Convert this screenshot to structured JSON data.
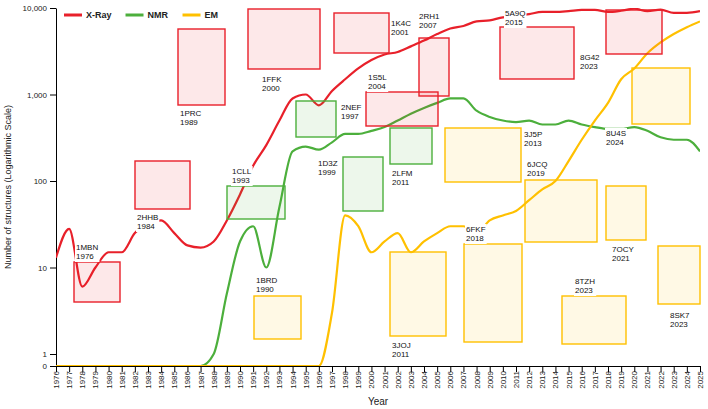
{
  "chart_data": {
    "type": "line",
    "x_label": "Year",
    "y_label": "Number of structures (Logarithmic Scale)",
    "log": "y",
    "legend": "top-left",
    "x": [
      1976,
      1977,
      1978,
      1979,
      1980,
      1981,
      1982,
      1983,
      1984,
      1985,
      1986,
      1987,
      1988,
      1989,
      1990,
      1991,
      1992,
      1993,
      1994,
      1995,
      1996,
      1997,
      1998,
      1999,
      2000,
      2001,
      2002,
      2003,
      2004,
      2005,
      2006,
      2007,
      2008,
      2009,
      2010,
      2011,
      2012,
      2013,
      2014,
      2015,
      2016,
      2017,
      2018,
      2019,
      2020,
      2021,
      2022,
      2023,
      2024,
      2025
    ],
    "xlim": [
      1976,
      2025
    ],
    "xticks": [
      1976,
      1977,
      1978,
      1979,
      1980,
      1981,
      1982,
      1983,
      1984,
      1985,
      1986,
      1987,
      1988,
      1989,
      1990,
      1991,
      1992,
      1993,
      1994,
      1995,
      1996,
      1997,
      1998,
      1999,
      2000,
      2001,
      2002,
      2003,
      2004,
      2005,
      2006,
      2007,
      2008,
      2009,
      2010,
      2011,
      2012,
      2013,
      2014,
      2015,
      2016,
      2017,
      2018,
      2019,
      2020,
      2021,
      2022,
      2023,
      2024,
      2025
    ],
    "ylim": [
      0,
      10000
    ],
    "yticks": [
      0,
      1,
      10,
      100,
      {
        "value": 1000,
        "label": "1,000"
      },
      {
        "value": 10000,
        "label": "10,000"
      }
    ],
    "series": [
      {
        "name": "X-Ray",
        "color": "#e8202a",
        "values": [
          13,
          28,
          6,
          10,
          15,
          15,
          25,
          32,
          35,
          25,
          18,
          17,
          20,
          35,
          70,
          150,
          260,
          500,
          900,
          1000,
          750,
          1100,
          1500,
          2000,
          2500,
          2900,
          3100,
          3600,
          4200,
          5000,
          5800,
          6200,
          7000,
          7200,
          7800,
          8000,
          8500,
          9000,
          9000,
          9200,
          9500,
          9500,
          9000,
          9300,
          9800,
          9200,
          9600,
          8800,
          8800,
          9200
        ]
      },
      {
        "name": "NMR",
        "color": "#4caf3c",
        "values": [
          0,
          0,
          0,
          0,
          0,
          0,
          0,
          0,
          0,
          0,
          0,
          0,
          1,
          5,
          20,
          30,
          10,
          50,
          220,
          250,
          230,
          280,
          350,
          350,
          380,
          420,
          500,
          600,
          700,
          800,
          900,
          900,
          650,
          550,
          500,
          480,
          500,
          450,
          450,
          500,
          450,
          420,
          400,
          400,
          420,
          380,
          320,
          300,
          300,
          220
        ]
      },
      {
        "name": "EM",
        "color": "#ffc000",
        "values": [
          0,
          0,
          0,
          0,
          0,
          0,
          0,
          0,
          0,
          0,
          0,
          0,
          0,
          0,
          0,
          0,
          0,
          0,
          0,
          0,
          0,
          3,
          40,
          30,
          15,
          20,
          25,
          15,
          20,
          25,
          30,
          30,
          25,
          35,
          40,
          45,
          60,
          80,
          100,
          170,
          300,
          500,
          800,
          1500,
          2000,
          3000,
          4000,
          5000,
          6000,
          7000
        ]
      }
    ],
    "annotations": [
      {
        "text": "1MBN",
        "year": "1976",
        "color": "#e8202a"
      },
      {
        "text": "2HHB",
        "year": "1984",
        "color": "#e8202a"
      },
      {
        "text": "1PRC",
        "year": "1989",
        "color": "#e8202a"
      },
      {
        "text": "1CLL",
        "year": "1993",
        "color": "#4caf3c"
      },
      {
        "text": "1BRD",
        "year": "1990",
        "color": "#ffc000"
      },
      {
        "text": "1FFK",
        "year": "2000",
        "color": "#e8202a"
      },
      {
        "text": "1K4C",
        "year": "2001",
        "color": "#e8202a"
      },
      {
        "text": "2NEF",
        "year": "1997",
        "color": "#4caf3c"
      },
      {
        "text": "1S5L",
        "year": "2004",
        "color": "#e8202a"
      },
      {
        "text": "1D3Z",
        "year": "1999",
        "color": "#4caf3c"
      },
      {
        "text": "2RH1",
        "year": "2007",
        "color": "#e8202a"
      },
      {
        "text": "2LFM",
        "year": "2011",
        "color": "#4caf3c"
      },
      {
        "text": "3J5P",
        "year": "2013",
        "color": "#ffc000"
      },
      {
        "text": "3JOJ",
        "year": "2011",
        "color": "#ffc000"
      },
      {
        "text": "5A9Q",
        "year": "2015",
        "color": "#e8202a"
      },
      {
        "text": "6FKF",
        "year": "2018",
        "color": "#ffc000"
      },
      {
        "text": "6JCQ",
        "year": "2019",
        "color": "#ffc000"
      },
      {
        "text": "7OCY",
        "year": "2021",
        "color": "#ffc000"
      },
      {
        "text": "8G42",
        "year": "2023",
        "color": "#e8202a"
      },
      {
        "text": "8U4S",
        "year": "2024",
        "color": "#ffc000"
      },
      {
        "text": "8TZH",
        "year": "2023",
        "color": "#ffc000"
      },
      {
        "text": "8SK7",
        "year": "2023",
        "color": "#ffc000"
      }
    ]
  }
}
